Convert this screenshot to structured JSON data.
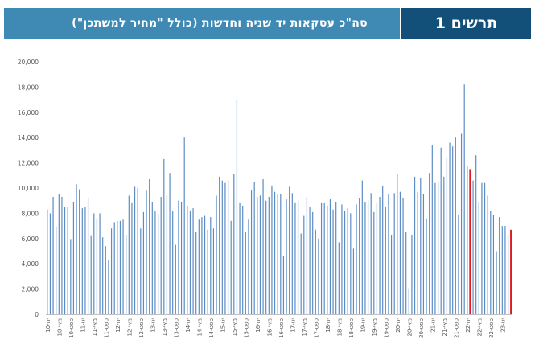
{
  "header": {
    "title": "סה\"כ עסקאות יד שניה וחדשות (כולל \"מחיר למשתכן\")",
    "tag": "תרשים 1"
  },
  "colors": {
    "bar": "#5b8cc4",
    "highlight": "#e0181f",
    "header_light": "#3e8ab5",
    "header_dark": "#12507a"
  },
  "chart_data": {
    "type": "bar",
    "ylim": [
      0,
      20000
    ],
    "yticks": [
      0,
      2000,
      4000,
      6000,
      8000,
      10000,
      12000,
      14000,
      16000,
      18000,
      20000
    ],
    "ytick_labels": [
      "0",
      "2,000",
      "4,000",
      "6,000",
      "8,000",
      "10,000",
      "12,000",
      "14,000",
      "16,000",
      "18,000",
      "20,000"
    ],
    "xtick_labels": [
      "ינו-10",
      "מאי-10",
      "ספט-10",
      "ינו-11",
      "מאי-11",
      "ספט-11",
      "ינו-12",
      "מאי-12",
      "ספט-12",
      "ינו-13",
      "מאי-13",
      "ספט-13",
      "ינו-14",
      "מאי-14",
      "ספט-14",
      "ינו-15",
      "מאי-15",
      "ספט-15",
      "ינו-16",
      "מאי-16",
      "ספט-16",
      "ינו-17",
      "מאי-17",
      "ספט-17",
      "ינו-18",
      "מאי-18",
      "ספט-18",
      "ינו-19",
      "מאי-19",
      "ספט-19",
      "ינו-20",
      "מאי-20",
      "ספט-20",
      "ינו-21",
      "מאי-21",
      "ספט-21",
      "ינו-22",
      "מאי-22",
      "ספט-22",
      "ינו-23"
    ],
    "xtick_every": 4,
    "highlight_indices": [
      145,
      159
    ],
    "values": [
      8300,
      8000,
      9300,
      6900,
      9500,
      9300,
      8500,
      8500,
      5900,
      8900,
      10300,
      9900,
      8400,
      8500,
      9200,
      6200,
      8000,
      7600,
      8000,
      6100,
      5400,
      4300,
      6800,
      7300,
      7400,
      7400,
      7500,
      6300,
      9400,
      8800,
      10100,
      10000,
      6800,
      8100,
      9800,
      10700,
      8900,
      8200,
      8000,
      9300,
      12300,
      9400,
      11200,
      8200,
      5500,
      9000,
      8900,
      14000,
      8600,
      8200,
      8400,
      6500,
      7500,
      7700,
      7800,
      6700,
      7700,
      6800,
      9400,
      10900,
      10600,
      10400,
      10600,
      7400,
      11100,
      17000,
      8800,
      8600,
      6500,
      7500,
      9800,
      10500,
      9300,
      9400,
      10700,
      9000,
      9300,
      10200,
      9700,
      9500,
      9500,
      4600,
      9100,
      10100,
      9600,
      8800,
      9000,
      6400,
      7800,
      9300,
      8500,
      8100,
      6700,
      6000,
      8800,
      8800,
      8600,
      9100,
      8300,
      8900,
      5700,
      8700,
      8200,
      8400,
      8000,
      5200,
      8700,
      9200,
      10600,
      8900,
      9000,
      9600,
      8100,
      8800,
      9300,
      10200,
      8500,
      9500,
      6300,
      9600,
      11100,
      9700,
      9200,
      6500,
      2000,
      6300,
      10900,
      9700,
      10800,
      9500,
      7600,
      11200,
      13400,
      10400,
      10500,
      13200,
      10900,
      12400,
      13600,
      13300,
      14000,
      7900,
      14300,
      18200,
      11700,
      11500,
      10600,
      12600,
      8900,
      10400,
      10400,
      9400,
      8200,
      7900,
      5000,
      7700,
      7000,
      7000,
      6300,
      6700
    ]
  }
}
